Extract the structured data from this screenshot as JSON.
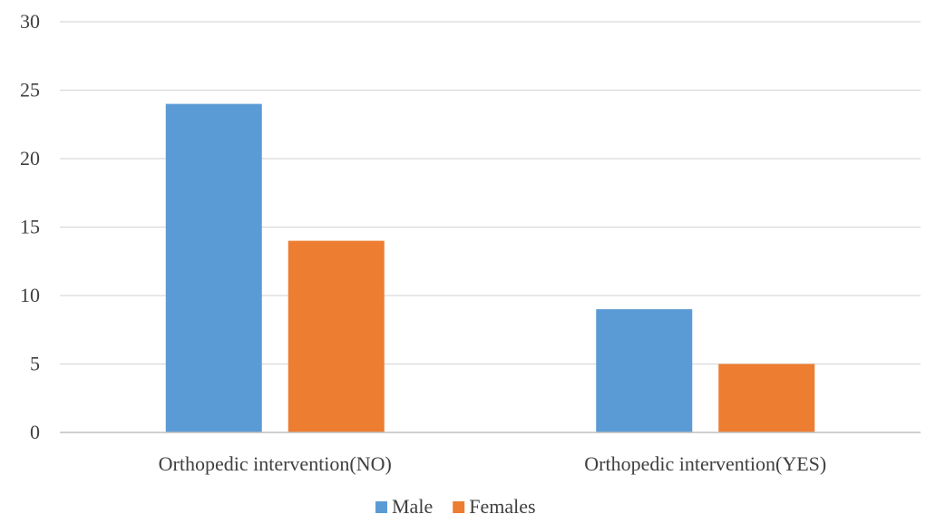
{
  "chart_data": {
    "type": "bar",
    "categories": [
      "Orthopedic intervention(NO)",
      "Orthopedic intervention(YES)"
    ],
    "series": [
      {
        "name": "Male",
        "values": [
          24,
          9
        ],
        "color": "#5B9BD5"
      },
      {
        "name": "Females",
        "values": [
          14,
          5
        ],
        "color": "#ED7D31"
      }
    ],
    "ylim": [
      0,
      30
    ],
    "yticks": [
      0,
      5,
      10,
      15,
      20,
      25,
      30
    ],
    "grid": true,
    "legend_position": "bottom"
  }
}
